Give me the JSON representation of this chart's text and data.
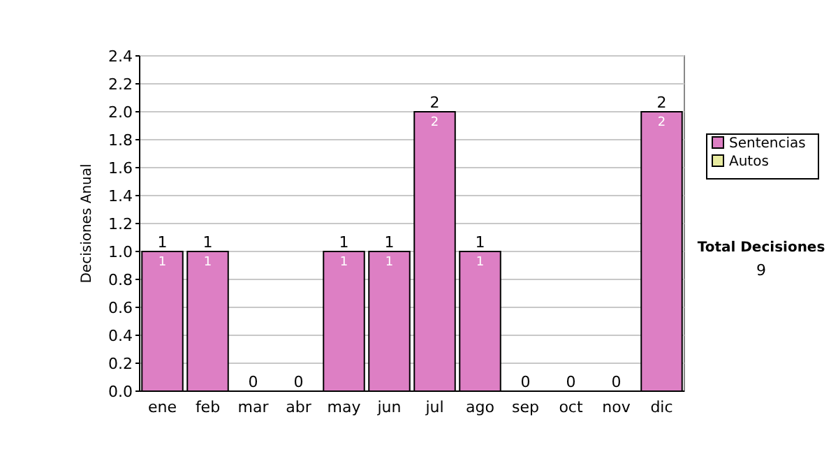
{
  "chart_data": {
    "type": "bar",
    "stacked": true,
    "ylabel": "Decisiones Anual",
    "categories": [
      "ene",
      "feb",
      "mar",
      "abr",
      "may",
      "jun",
      "jul",
      "ago",
      "sep",
      "oct",
      "nov",
      "dic"
    ],
    "series": [
      {
        "name": "Sentencias",
        "color": "#dd7fc4",
        "values": [
          1,
          1,
          0,
          0,
          1,
          1,
          2,
          1,
          0,
          0,
          0,
          2
        ],
        "value_labels": [
          "1",
          "1",
          null,
          null,
          "1",
          "1",
          "2",
          "1",
          null,
          null,
          null,
          "2"
        ]
      },
      {
        "name": "Autos",
        "color": "#e8eba0",
        "values": [
          0,
          0,
          0,
          0,
          0,
          0,
          0,
          0,
          0,
          0,
          0,
          0
        ]
      }
    ],
    "totals": [
      "1",
      "1",
      "0",
      "0",
      "1",
      "1",
      "2",
      "1",
      "0",
      "0",
      "0",
      "2"
    ],
    "ylim": [
      0,
      2.4
    ],
    "yticks": [
      {
        "value": 0,
        "label": "0.0"
      },
      {
        "value": 0.2,
        "label": "0.2"
      },
      {
        "value": 0.4,
        "label": "0.4"
      },
      {
        "value": 0.6,
        "label": "0.6"
      },
      {
        "value": 0.8,
        "label": "0.8"
      },
      {
        "value": 1,
        "label": "1.0"
      },
      {
        "value": 1.2,
        "label": "1.2"
      },
      {
        "value": 1.4,
        "label": "1.4"
      },
      {
        "value": 1.6,
        "label": "1.6"
      },
      {
        "value": 1.8,
        "label": "1.8"
      },
      {
        "value": 2,
        "label": "2.0"
      },
      {
        "value": 2.2,
        "label": "2.2"
      },
      {
        "value": 2.4,
        "label": "2.4"
      }
    ],
    "grid": "y",
    "legend": "right",
    "annotations": [
      "Total Decisiones",
      "9"
    ]
  }
}
